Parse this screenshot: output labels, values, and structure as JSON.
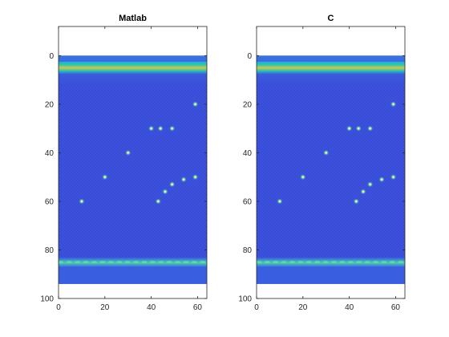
{
  "chart_data": [
    {
      "type": "heatmap",
      "title": "Matlab",
      "xlim": [
        0,
        64
      ],
      "ylim": [
        100,
        0
      ],
      "y_reversed": true,
      "xticks": [
        0,
        20,
        40,
        60
      ],
      "yticks": [
        0,
        20,
        40,
        60,
        80,
        100
      ],
      "image_extent": {
        "x": [
          0,
          64
        ],
        "y": [
          0,
          94
        ]
      },
      "colormap": "parula",
      "grid": false,
      "features": [
        {
          "type": "bright-band",
          "y": 5,
          "intensity": 0.72
        },
        {
          "type": "bright-band",
          "y": 85,
          "intensity": 0.6
        }
      ],
      "bright_spots": [
        {
          "x": 59,
          "y": 20
        },
        {
          "x": 40,
          "y": 30
        },
        {
          "x": 44,
          "y": 30
        },
        {
          "x": 49,
          "y": 30
        },
        {
          "x": 30,
          "y": 40
        },
        {
          "x": 20,
          "y": 50
        },
        {
          "x": 49,
          "y": 53
        },
        {
          "x": 54,
          "y": 51
        },
        {
          "x": 59,
          "y": 50
        },
        {
          "x": 46,
          "y": 56
        },
        {
          "x": 43,
          "y": 60
        },
        {
          "x": 10,
          "y": 60
        }
      ]
    },
    {
      "type": "heatmap",
      "title": "C",
      "xlim": [
        0,
        64
      ],
      "ylim": [
        100,
        0
      ],
      "y_reversed": true,
      "xticks": [
        0,
        20,
        40,
        60
      ],
      "yticks": [
        0,
        20,
        40,
        60,
        80,
        100
      ],
      "image_extent": {
        "x": [
          0,
          64
        ],
        "y": [
          0,
          94
        ]
      },
      "colormap": "parula",
      "grid": false,
      "features": [
        {
          "type": "bright-band",
          "y": 5,
          "intensity": 0.72
        },
        {
          "type": "bright-band",
          "y": 85,
          "intensity": 0.6
        }
      ],
      "bright_spots": [
        {
          "x": 59,
          "y": 20
        },
        {
          "x": 40,
          "y": 30
        },
        {
          "x": 44,
          "y": 30
        },
        {
          "x": 49,
          "y": 30
        },
        {
          "x": 30,
          "y": 40
        },
        {
          "x": 20,
          "y": 50
        },
        {
          "x": 49,
          "y": 53
        },
        {
          "x": 54,
          "y": 51
        },
        {
          "x": 59,
          "y": 50
        },
        {
          "x": 46,
          "y": 56
        },
        {
          "x": 43,
          "y": 60
        },
        {
          "x": 10,
          "y": 60
        }
      ]
    }
  ],
  "colors": {
    "background": "#3b50dc",
    "background_dark": "#2f3fc0",
    "band_top_core": "#d9c84a",
    "band_top_edge": "#2ec4b0",
    "band_bottom": "#3fc0c0",
    "spot": "#e8f060",
    "axis": "#262626"
  }
}
